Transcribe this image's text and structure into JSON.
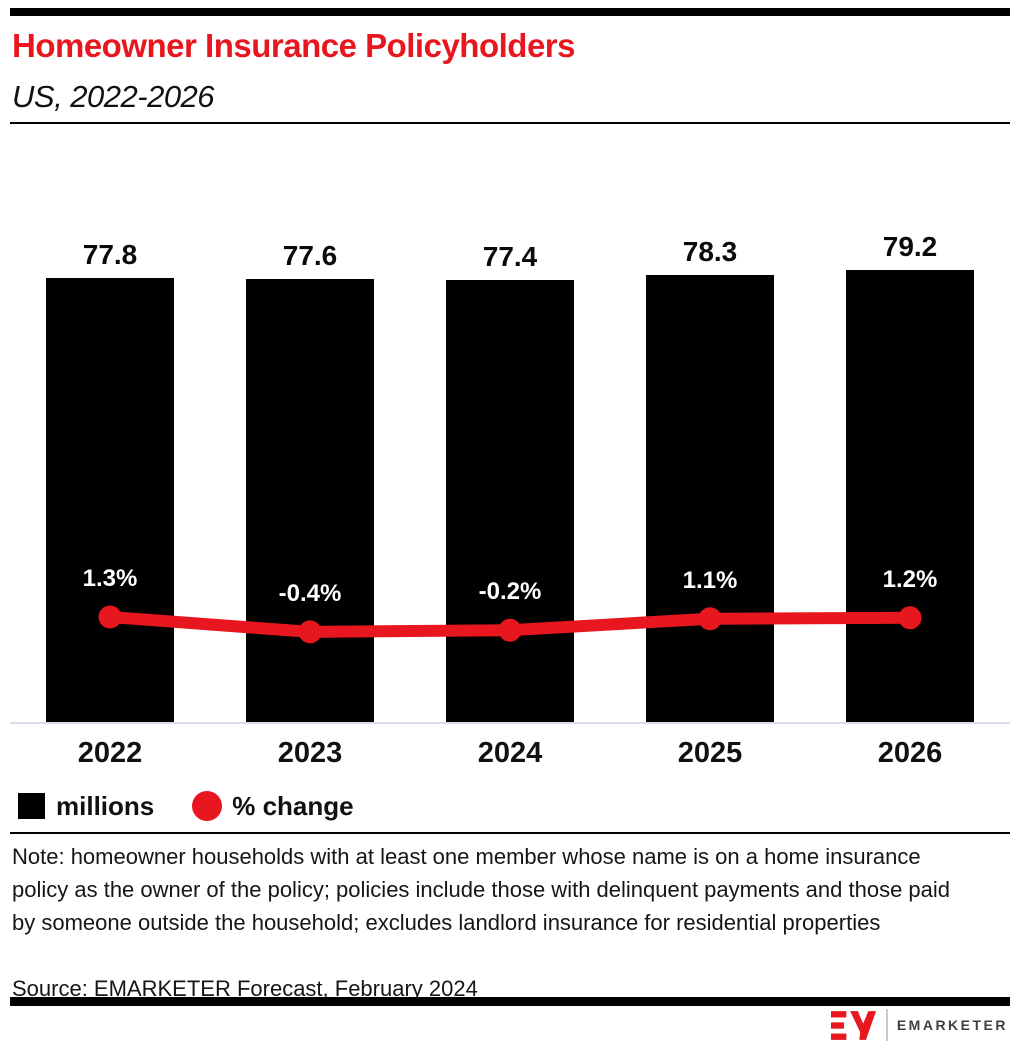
{
  "page": {
    "background": "#ffffff",
    "accent_red": "#e8161e"
  },
  "header": {
    "title": "Homeowner Insurance Policyholders",
    "subtitle": "US, 2022-2026"
  },
  "chart_data": {
    "type": "bar",
    "title": "Homeowner Insurance Policyholders",
    "subtitle": "US, 2022-2026",
    "categories": [
      "2022",
      "2023",
      "2024",
      "2025",
      "2026"
    ],
    "series": [
      {
        "name": "millions",
        "type": "bar",
        "color": "#000000",
        "values": [
          77.8,
          77.6,
          77.4,
          78.3,
          79.2
        ],
        "data_labels": [
          "77.8",
          "77.6",
          "77.4",
          "78.3",
          "79.2"
        ]
      },
      {
        "name": "% change",
        "type": "line",
        "color": "#e8161e",
        "values": [
          1.3,
          -0.4,
          -0.2,
          1.1,
          1.2
        ],
        "data_labels": [
          "1.3%",
          "-0.4%",
          "-0.2%",
          "1.1%",
          "1.2%"
        ]
      }
    ],
    "axes": {
      "x_ticks": [
        "2022",
        "2023",
        "2024",
        "2025",
        "2026"
      ],
      "y_axis_visible": false,
      "gridlines": false,
      "bar_axis_range": [
        0,
        79.2
      ],
      "line_unit": "%"
    },
    "legend": {
      "position": "bottom-left",
      "items": [
        {
          "label": "millions",
          "swatch": "square",
          "color": "#000000"
        },
        {
          "label": "% change",
          "swatch": "circle",
          "color": "#e8161e"
        }
      ]
    }
  },
  "footer": {
    "note": "Note: homeowner households with at least one member whose name is on a home insurance policy as the owner of the policy; policies include those with delinquent payments and those paid by someone outside the household; excludes landlord insurance for residential properties",
    "source": "Source: EMARKETER Forecast, February 2024"
  },
  "branding": {
    "logo_text": "EMARKETER",
    "mark": "EM-monogram",
    "mark_color": "#e8161e",
    "text_color": "#3f3f3f"
  }
}
